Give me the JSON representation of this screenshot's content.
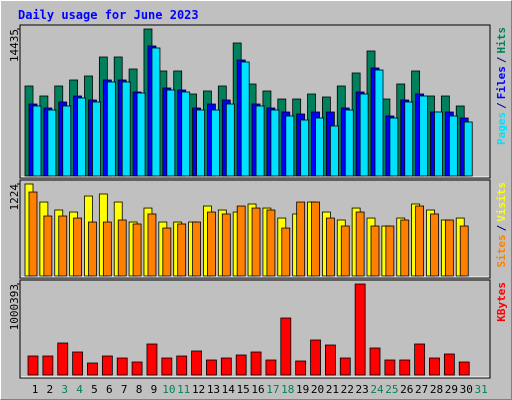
{
  "title": "Daily usage for June 2023",
  "legend_separator": "/",
  "chart_data": [
    {
      "type": "bar",
      "categories": [
        "1",
        "2",
        "3",
        "4",
        "5",
        "6",
        "7",
        "8",
        "9",
        "10",
        "11",
        "12",
        "13",
        "14",
        "15",
        "16",
        "17",
        "18",
        "19",
        "20",
        "21",
        "22",
        "23",
        "24",
        "25",
        "26",
        "27",
        "28",
        "29",
        "30",
        "31"
      ],
      "x_label_colors": [
        "#000000",
        "#000000",
        "#00805c",
        "#00805c",
        "#000000",
        "#000000",
        "#000000",
        "#000000",
        "#000000",
        "#00805c",
        "#00805c",
        "#000000",
        "#000000",
        "#000000",
        "#000000",
        "#000000",
        "#00805c",
        "#00805c",
        "#000000",
        "#000000",
        "#000000",
        "#000000",
        "#000000",
        "#00805c",
        "#00805c",
        "#000000",
        "#000000",
        "#000000",
        "#000000",
        "#000000",
        "#00805c"
      ],
      "ylim": [
        0,
        14435
      ],
      "yticks": [
        14435
      ],
      "series": [
        {
          "name": "Hits",
          "color": "#00805c",
          "values": [
            8838,
            7856,
            8838,
            9427,
            9820,
            11686,
            11686,
            10507,
            14435,
            10311,
            10311,
            8052,
            8347,
            8838,
            13061,
            9034,
            8347,
            7561,
            7561,
            8052,
            7758,
            8838,
            10115,
            12275,
            7561,
            9034,
            10311,
            7856,
            7856,
            6874,
            null
          ]
        },
        {
          "name": "Files",
          "color": "#0000ff",
          "values": [
            7070,
            6678,
            7267,
            7856,
            7463,
            9427,
            9427,
            8249,
            12766,
            8642,
            8445,
            6678,
            7070,
            7463,
            11391,
            7070,
            6678,
            6285,
            6088,
            6285,
            6285,
            6678,
            8249,
            10606,
            5892,
            7463,
            8052,
            6285,
            6285,
            5696,
            null
          ]
        },
        {
          "name": "Pages",
          "color": "#00e0ff",
          "values": [
            6874,
            6481,
            6874,
            7660,
            7267,
            9231,
            9231,
            8151,
            12570,
            8445,
            8249,
            6481,
            6481,
            7070,
            11195,
            6874,
            6481,
            5892,
            5499,
            5696,
            4910,
            6481,
            8052,
            10409,
            5696,
            7267,
            7856,
            6285,
            5892,
            5303,
            null
          ]
        }
      ]
    },
    {
      "type": "bar",
      "ylim": [
        0,
        1224
      ],
      "yticks": [
        1224
      ],
      "series": [
        {
          "name": "Visits",
          "color": "#ffff00",
          "values": [
            1224,
            984,
            878,
            851,
            1064,
            1091,
            984,
            718,
            904,
            718,
            718,
            718,
            931,
            878,
            851,
            958,
            904,
            771,
            825,
            984,
            851,
            745,
            904,
            771,
            665,
            771,
            958,
            878,
            745,
            771,
            null
          ]
        },
        {
          "name": "Sites",
          "color": "#ff8000",
          "values": [
            1117,
            798,
            798,
            771,
            718,
            718,
            745,
            692,
            825,
            638,
            692,
            718,
            851,
            825,
            931,
            904,
            878,
            638,
            984,
            984,
            771,
            665,
            851,
            665,
            665,
            745,
            931,
            825,
            745,
            665,
            null
          ]
        }
      ]
    },
    {
      "type": "bar",
      "ylim": [
        0,
        1000393
      ],
      "yticks": [
        1000393
      ],
      "series": [
        {
          "name": "KBytes",
          "color": "#ff0000",
          "values": [
            208867,
            208867,
            351776,
            252839,
            131916,
            208867,
            186881,
            142909,
            340783,
            186881,
            208867,
            263832,
            164895,
            186881,
            219860,
            252839,
            164895,
            626601,
            153902,
            384755,
            329790,
            186881,
            1000393,
            296811,
            164895,
            164895,
            340783,
            186881,
            230853,
            142909,
            null
          ]
        }
      ]
    }
  ]
}
